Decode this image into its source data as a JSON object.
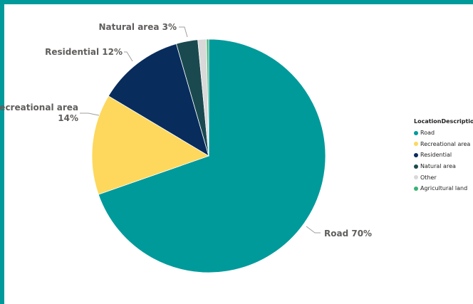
{
  "chart_data": {
    "type": "pie",
    "categories": [
      "Road",
      "Recreational area",
      "Residential",
      "Natural area",
      "Other",
      "Agricultural land"
    ],
    "values": [
      70,
      14,
      12,
      3,
      1.2,
      0.3
    ],
    "colors": [
      "#009a9b",
      "#fdd85c",
      "#082c5c",
      "#1a4a4f",
      "#d9d9d9",
      "#3bb271"
    ],
    "data_labels": [
      [
        "Road 70%"
      ],
      [
        "Recreational area",
        "14%"
      ],
      [
        "Residential 12%"
      ],
      [
        "Natural area 3%"
      ],
      [],
      []
    ],
    "legend_title": "LocationDescription",
    "legend_position": "right",
    "start_angle_deg": 0,
    "direction": "clockwise"
  }
}
